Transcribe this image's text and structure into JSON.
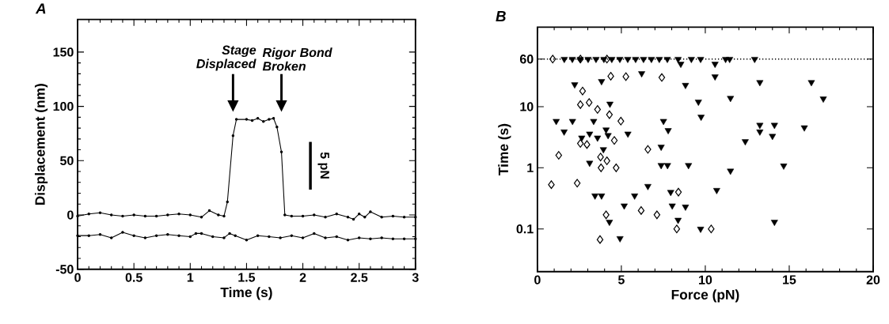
{
  "chart_data": [
    {
      "type": "line",
      "title": "A",
      "xlabel": "Time (s)",
      "ylabel": "Displacement (nm)",
      "xlim": [
        0,
        3
      ],
      "ylim": [
        -50,
        180
      ],
      "xticks": [
        0,
        0.5,
        1,
        1.5,
        2,
        2.5,
        3
      ],
      "yticks": [
        -50,
        0,
        50,
        100,
        150
      ],
      "marker": "circle",
      "line_style": "solid",
      "series": [
        {
          "color": "#000000",
          "x": [
            0,
            0.1,
            0.2,
            0.3,
            0.4,
            0.5,
            0.6,
            0.7,
            0.8,
            0.9,
            1.0,
            1.1,
            1.17,
            1.25,
            1.3,
            1.33,
            1.38,
            1.41,
            1.5,
            1.55,
            1.6,
            1.65,
            1.7,
            1.74,
            1.77,
            1.81,
            1.84,
            1.9,
            2.0,
            2.1,
            2.2,
            2.3,
            2.4,
            2.45,
            2.5,
            2.55,
            2.6,
            2.7,
            2.8,
            2.9,
            3.0
          ],
          "values": [
            -1,
            1,
            2,
            0,
            -1,
            0,
            -1,
            -1,
            0,
            1,
            0,
            -2,
            4,
            0,
            -1,
            12,
            73,
            88,
            88,
            87,
            89,
            86,
            88,
            89,
            81,
            58,
            0,
            -1,
            -1,
            0,
            -2,
            1,
            -2,
            -4,
            1,
            -2,
            3,
            -2,
            -1,
            -2,
            -2
          ]
        },
        {
          "color": "#000000",
          "x": [
            0,
            0.1,
            0.2,
            0.3,
            0.4,
            0.5,
            0.6,
            0.7,
            0.8,
            0.9,
            1.0,
            1.05,
            1.1,
            1.2,
            1.3,
            1.35,
            1.4,
            1.5,
            1.6,
            1.7,
            1.8,
            1.9,
            2.0,
            2.1,
            2.2,
            2.3,
            2.4,
            2.5,
            2.6,
            2.7,
            2.8,
            2.9,
            3.0
          ],
          "values": [
            -19,
            -19,
            -18,
            -21,
            -16,
            -19,
            -21,
            -19,
            -18,
            -19,
            -20,
            -17,
            -17,
            -20,
            -21,
            -17,
            -19,
            -23,
            -19,
            -20,
            -21,
            -19,
            -21,
            -17,
            -21,
            -20,
            -23,
            -21,
            -22,
            -21,
            -22,
            -22,
            -22
          ]
        }
      ],
      "annotations": [
        "*Stage Displaced*",
        "*Rigor Bond Broken*",
        "5 pN"
      ]
    },
    {
      "type": "scatter",
      "title": "B",
      "xlabel": "Force (pN)",
      "ylabel": "Time (s)",
      "xlim": [
        0,
        20
      ],
      "ylim": [
        0.02,
        200
      ],
      "log": "y",
      "xticks": [
        0,
        5,
        10,
        15,
        20
      ],
      "yticks": [
        0.1,
        1,
        10,
        60
      ],
      "ref_lines": [
        {
          "axis": "y",
          "value": 60,
          "line_style": "dotted"
        }
      ],
      "series": [
        {
          "color": "#000000",
          "marker": "diamond",
          "x": [
            0.91,
            2.56,
            4.14,
            4.37,
            5.27,
            7.41,
            2.69,
            2.56,
            3.08,
            3.58,
            4.29,
            4.97,
            2.56,
            2.95,
            4.58,
            1.27,
            6.58,
            3.76,
            4.14,
            3.79,
            4.69,
            0.83,
            2.37,
            4.09,
            6.18,
            7.12,
            3.73,
            8.4,
            8.3,
            10.35
          ],
          "values": [
            60,
            60,
            60,
            31.5,
            31,
            30,
            18,
            10.8,
            11.7,
            9.0,
            7.4,
            5.8,
            2.5,
            2.4,
            2.8,
            1.6,
            2.0,
            1.5,
            1.3,
            1.0,
            1.0,
            0.53,
            0.56,
            0.17,
            0.2,
            0.17,
            0.067,
            0.4,
            0.1,
            0.1
          ]
        },
        {
          "color": "#000000",
          "marker": "triangle",
          "x": [
            1.6,
            2.08,
            2.55,
            3.02,
            3.49,
            3.96,
            4.43,
            4.91,
            5.38,
            5.85,
            6.32,
            6.79,
            7.26,
            7.74,
            8.38,
            8.54,
            9.17,
            9.72,
            10.58,
            11.21,
            11.45,
            12.94,
            6.21,
            3.82,
            2.22,
            4.32,
            1.12,
            2.09,
            3.35,
            7.51,
            1.59,
            3.11,
            5.39,
            7.79,
            2.64,
            3.58,
            4.09,
            4.21,
            3.93,
            7.37,
            3.11,
            7.37,
            7.75,
            3.43,
            3.82,
            5.79,
            6.58,
            7.94,
            5.17,
            8.03,
            4.29,
            4.92,
            8.82,
            8.38,
            9.72,
            14.12,
            10.68,
            10.58,
            8.82,
            13.25,
            16.32,
            9.59,
            11.5,
            17.03,
            9.75,
            13.25,
            14.12,
            13.25,
            14.0,
            15.9,
            12.38,
            9.0,
            11.5,
            14.67
          ],
          "values": [
            60,
            60,
            60,
            60,
            60,
            60,
            60,
            60,
            60,
            60,
            60,
            60,
            60,
            60,
            60,
            50,
            60,
            60,
            50,
            60,
            60,
            60,
            35,
            26,
            23,
            11.1,
            5.8,
            5.8,
            5.8,
            5.8,
            3.9,
            3.6,
            3.6,
            4.1,
            3.1,
            3.1,
            4.2,
            3.4,
            2.0,
            2.2,
            1.2,
            1.1,
            1.1,
            0.35,
            0.35,
            0.35,
            0.5,
            0.4,
            0.24,
            0.24,
            0.13,
            0.07,
            0.23,
            0.14,
            0.1,
            0.13,
            0.43,
            31,
            22.5,
            25,
            25,
            12,
            13.8,
            13.5,
            6.8,
            5.0,
            5.0,
            3.9,
            3.3,
            4.55,
            2.7,
            1.1,
            0.89,
            1.08
          ]
        }
      ]
    }
  ]
}
